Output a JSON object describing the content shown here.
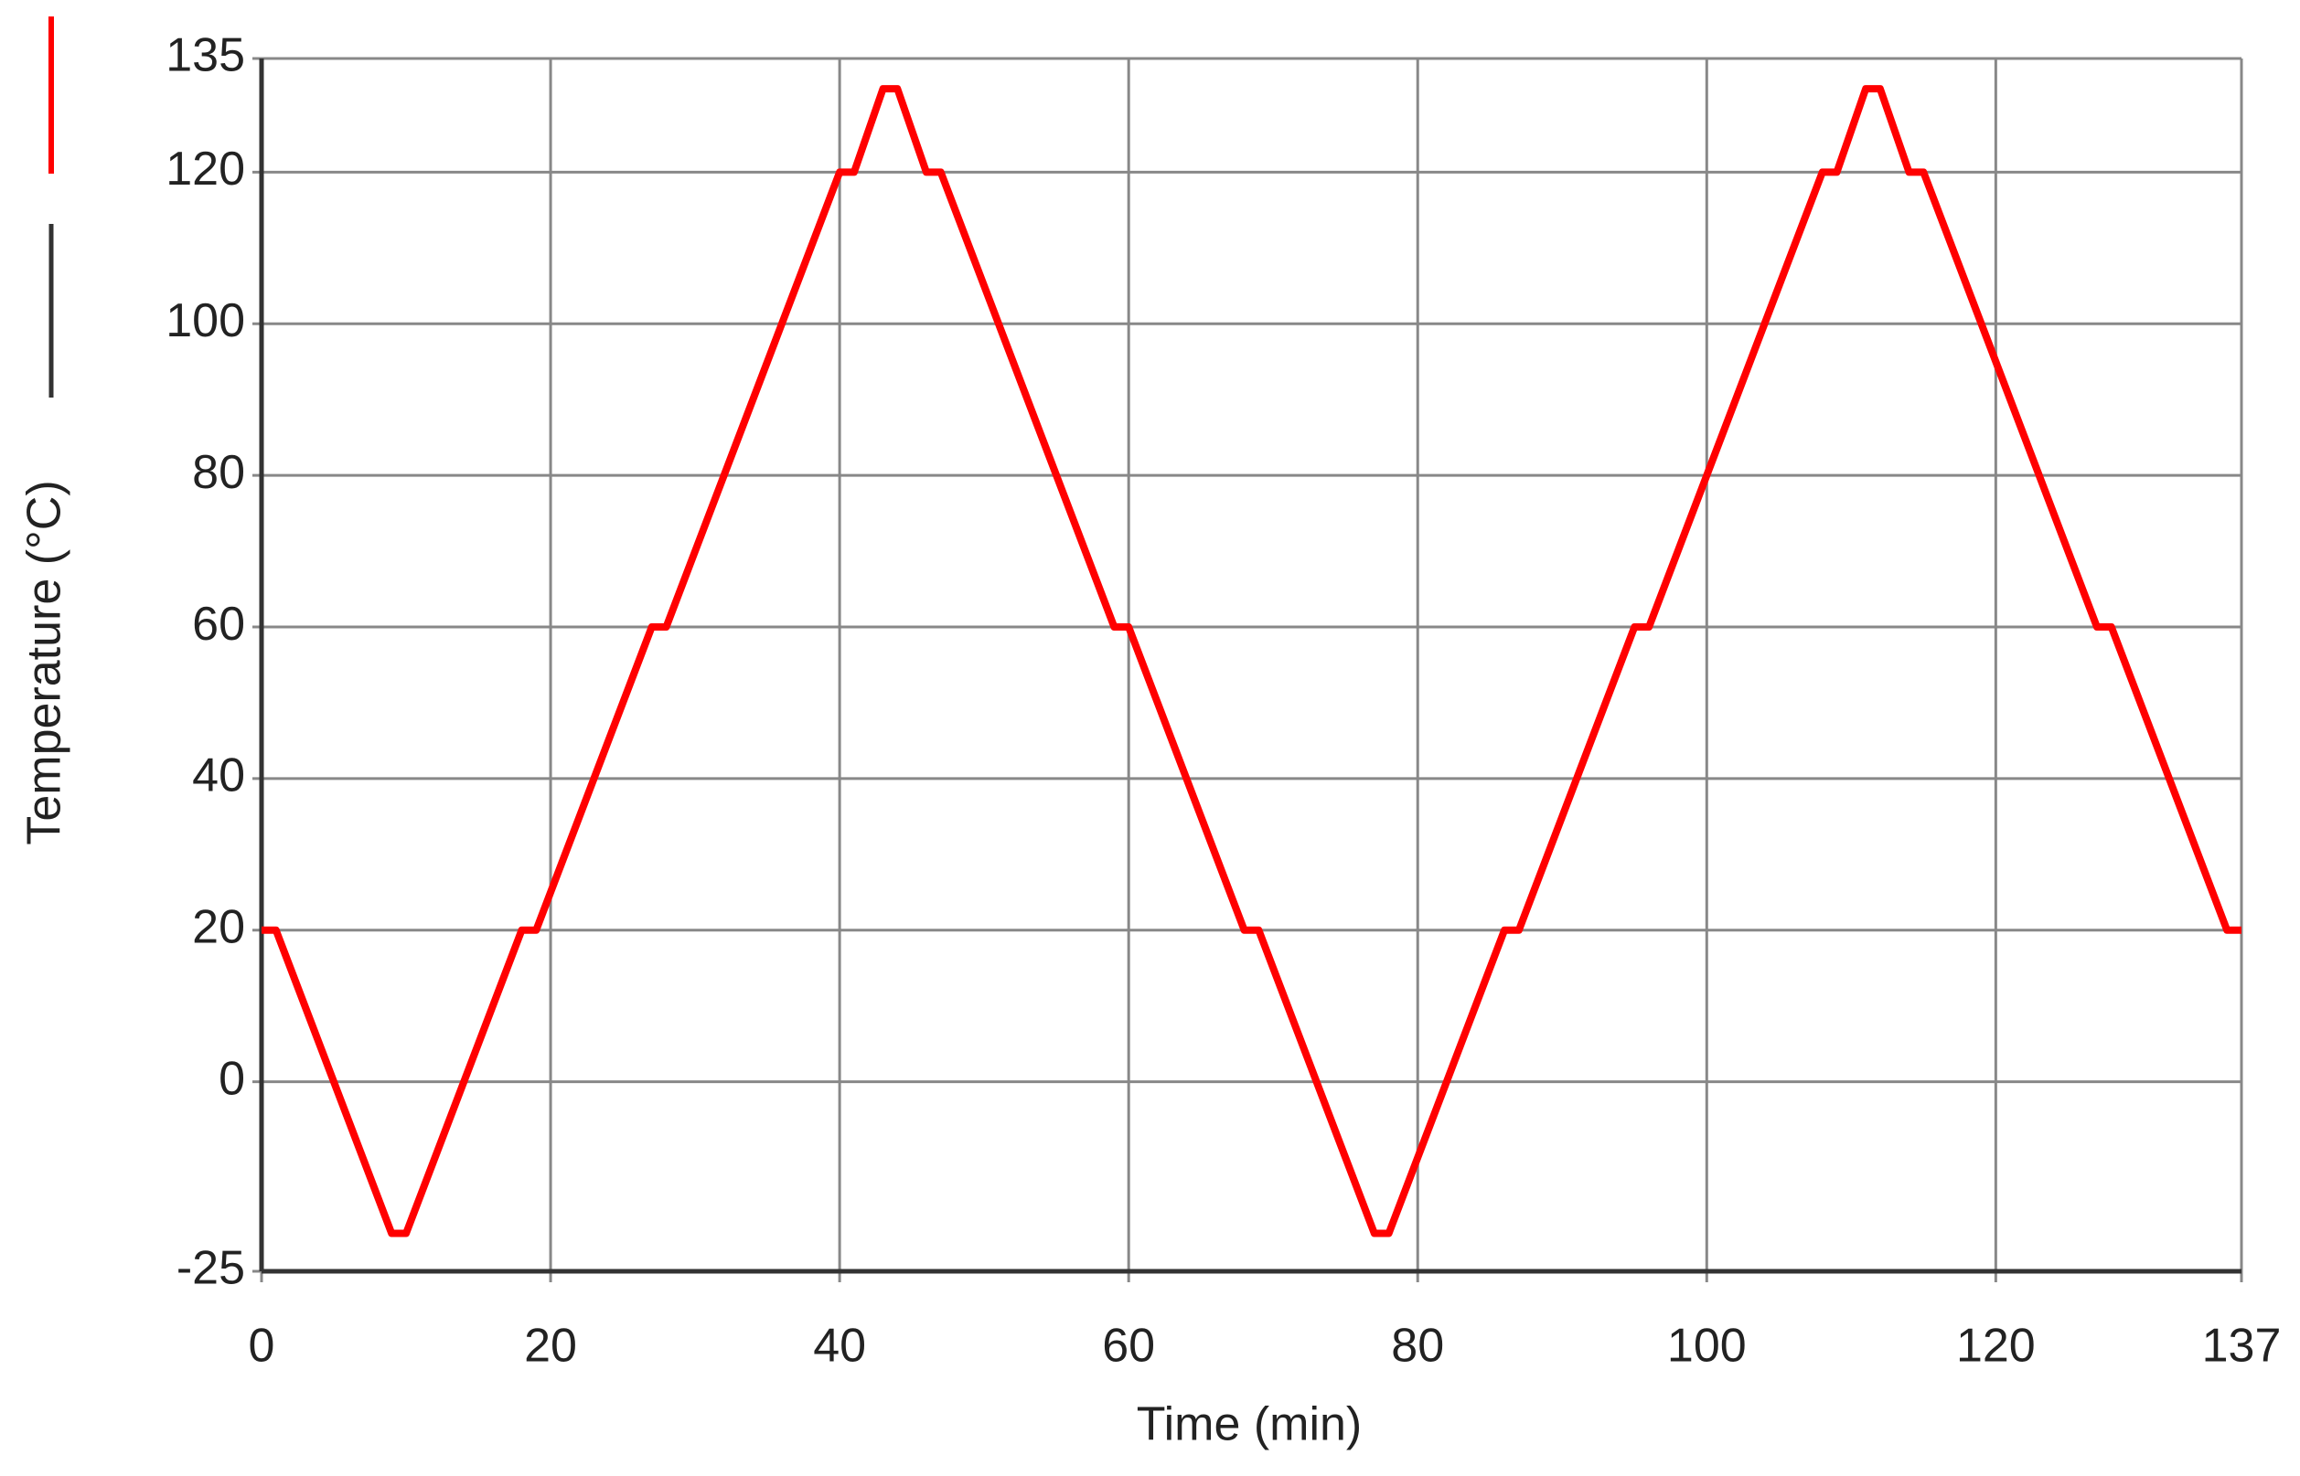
{
  "chart_data": {
    "type": "line",
    "x_label": "Time (min)",
    "y_label": "Temperature (°C)",
    "x": [
      0,
      1,
      9,
      10,
      18,
      19,
      27,
      28,
      40,
      41,
      43,
      44,
      46,
      47,
      59,
      60,
      68,
      69,
      77,
      78,
      86,
      87,
      95,
      96,
      108,
      109,
      111,
      112,
      114,
      115,
      127,
      128,
      136,
      137
    ],
    "series": [
      {
        "color": "#ff0000",
        "values": [
          20,
          20,
          -20,
          -20,
          20,
          20,
          60,
          60,
          120,
          120,
          131,
          131,
          120,
          120,
          60,
          60,
          20,
          20,
          -20,
          -20,
          20,
          20,
          60,
          60,
          120,
          120,
          131,
          131,
          120,
          120,
          60,
          60,
          20,
          20
        ]
      }
    ],
    "xlim": [
      0,
      137
    ],
    "xticks": [
      0,
      20,
      40,
      60,
      80,
      100,
      120,
      137
    ],
    "ylim": [
      -25,
      135
    ],
    "yticks": [
      -25,
      0,
      20,
      40,
      60,
      80,
      100,
      120,
      135
    ],
    "grid": true
  }
}
